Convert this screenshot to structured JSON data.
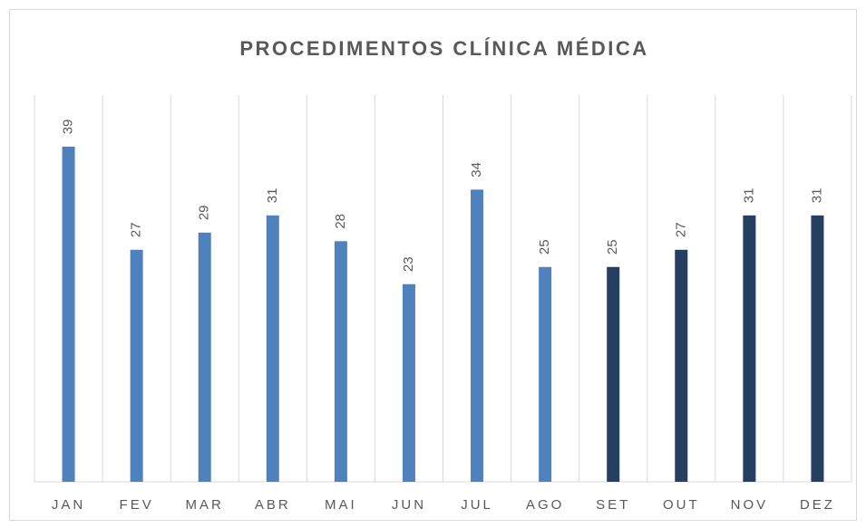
{
  "chart_data": {
    "type": "bar",
    "title": "PROCEDIMENTOS CLÍNICA MÉDICA",
    "categories": [
      "JAN",
      "FEV",
      "MAR",
      "ABR",
      "MAI",
      "JUN",
      "JUL",
      "AGO",
      "SET",
      "OUT",
      "NOV",
      "DEZ"
    ],
    "values": [
      39,
      27,
      29,
      31,
      28,
      23,
      34,
      25,
      25,
      27,
      31,
      31
    ],
    "colors": [
      "#4f81bd",
      "#4f81bd",
      "#4f81bd",
      "#4f81bd",
      "#4f81bd",
      "#4f81bd",
      "#4f81bd",
      "#4f81bd",
      "#243f60",
      "#243f60",
      "#243f60",
      "#243f60"
    ],
    "ylim": [
      0,
      45
    ],
    "grid": true
  }
}
